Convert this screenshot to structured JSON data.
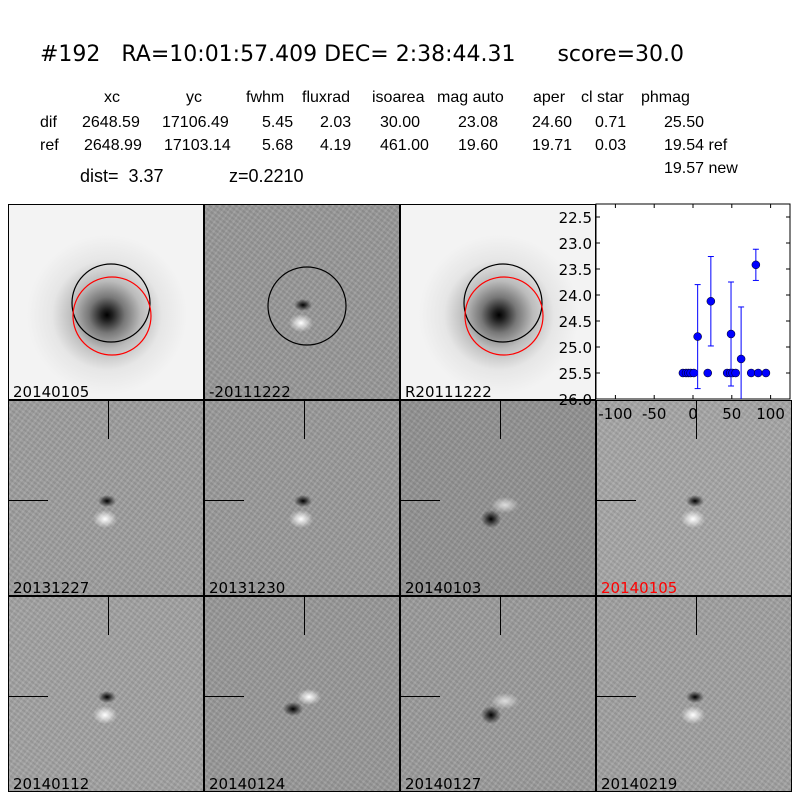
{
  "header": {
    "title": "#192   RA=10:01:57.409 DEC= 2:38:44.31      score=30.0",
    "columns": [
      "xc",
      "yc",
      "fwhm",
      "fluxrad",
      "isoarea",
      "mag auto",
      "aper",
      "cl star",
      "phmag"
    ],
    "dif": {
      "label": "dif",
      "values": [
        "2648.59",
        "17106.49",
        "5.45",
        "2.03",
        "30.00",
        "23.08",
        "24.60",
        "0.71",
        "25.50"
      ]
    },
    "ref": {
      "label": "ref",
      "values": [
        "2648.99",
        "17103.14",
        "5.68",
        "4.19",
        "461.00",
        "19.60",
        "19.71",
        "0.03",
        "19.54 ref"
      ]
    },
    "new_phmag": "19.57 new",
    "dist": "dist=  3.37",
    "z": "z=0.2210"
  },
  "stamps": [
    {
      "label": "20140105",
      "kind": "new"
    },
    {
      "label": "-20111222",
      "kind": "diff"
    },
    {
      "label": "R20111222",
      "kind": "ref"
    },
    {
      "label": "20131227",
      "kind": "diff"
    },
    {
      "label": "20131230",
      "kind": "diff"
    },
    {
      "label": "20140103",
      "kind": "diff"
    },
    {
      "label": "20140105",
      "kind": "diff",
      "label_color": "#ff0000"
    },
    {
      "label": "20140112",
      "kind": "diff"
    },
    {
      "label": "20140124",
      "kind": "diff"
    },
    {
      "label": "20140127",
      "kind": "diff"
    },
    {
      "label": "20140219",
      "kind": "diff"
    }
  ],
  "chart_data": {
    "type": "scatter",
    "title": "",
    "xlabel": "",
    "ylabel": "",
    "xlim": [
      -125,
      125
    ],
    "ylim": [
      26.0,
      22.25
    ],
    "y_inverted": true,
    "xticks": [
      -100,
      -50,
      0,
      50,
      100
    ],
    "yticks": [
      22.5,
      23.0,
      23.5,
      24.0,
      24.5,
      25.0,
      25.5,
      26.0
    ],
    "marker_color": "#0000ff",
    "points": [
      {
        "x": -13,
        "y": 25.5,
        "err": 0.05
      },
      {
        "x": -9,
        "y": 25.5,
        "err": 0.05
      },
      {
        "x": -6,
        "y": 25.5,
        "err": 0.05
      },
      {
        "x": -3,
        "y": 25.5,
        "err": 0.05
      },
      {
        "x": 1,
        "y": 25.5,
        "err": 0.05
      },
      {
        "x": 6,
        "y": 24.8,
        "err": 1.0
      },
      {
        "x": 19,
        "y": 25.5,
        "err": 0.05
      },
      {
        "x": 23,
        "y": 24.12,
        "err": 0.86
      },
      {
        "x": 44,
        "y": 25.5,
        "err": 0.05
      },
      {
        "x": 48,
        "y": 25.5,
        "err": 0.05
      },
      {
        "x": 51,
        "y": 25.5,
        "err": 0.05
      },
      {
        "x": 55,
        "y": 25.5,
        "err": 0.05
      },
      {
        "x": 49,
        "y": 24.75,
        "err": 1.0
      },
      {
        "x": 62,
        "y": 25.23,
        "err": 1.0
      },
      {
        "x": 75,
        "y": 25.5,
        "err": 0.05
      },
      {
        "x": 84,
        "y": 25.5,
        "err": 0.05
      },
      {
        "x": 94,
        "y": 25.5,
        "err": 0.05
      },
      {
        "x": 81,
        "y": 23.42,
        "err": 0.3
      }
    ]
  }
}
